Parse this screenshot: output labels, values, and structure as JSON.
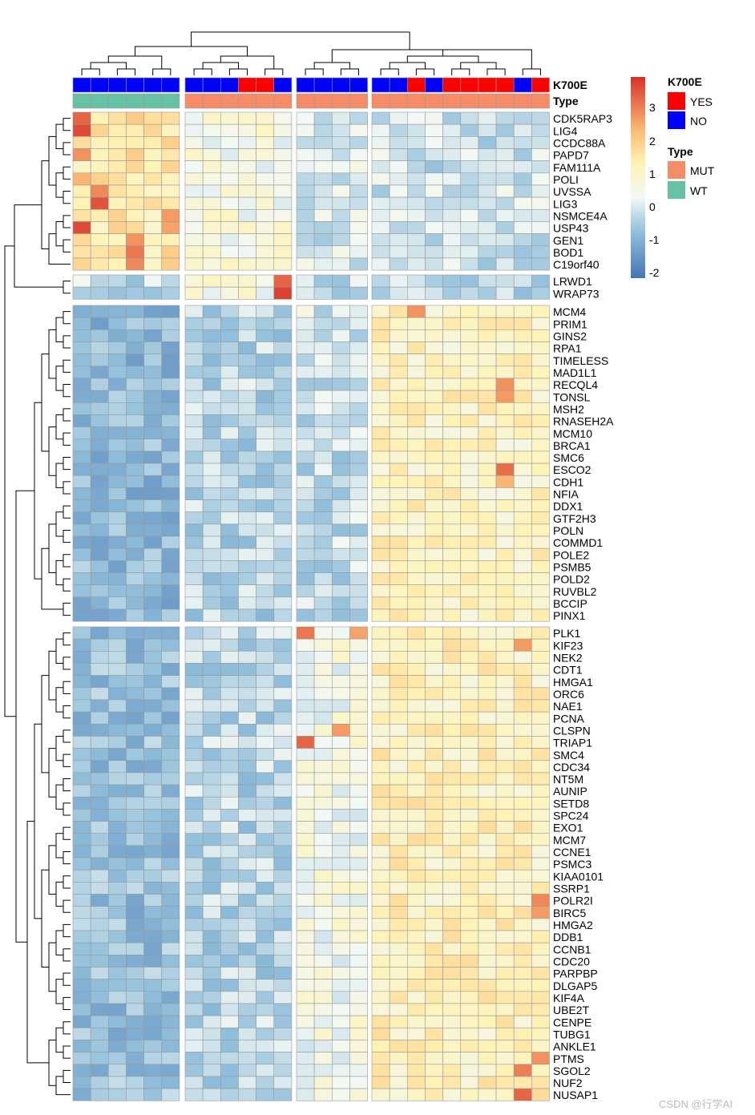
{
  "chart_data": {
    "type": "heatmap",
    "title": "",
    "annotations": [
      {
        "name": "K700E",
        "values": [
          "NO",
          "NO",
          "NO",
          "NO",
          "NO",
          "NO",
          "NO",
          "NO",
          "NO",
          "YES",
          "YES",
          "NO",
          "NO",
          "NO",
          "NO",
          "NO",
          "NO",
          "NO",
          "YES",
          "NO",
          "YES",
          "YES",
          "YES",
          "YES",
          "NO",
          "YES"
        ]
      },
      {
        "name": "Type",
        "values": [
          "WT",
          "WT",
          "WT",
          "WT",
          "WT",
          "WT",
          "MUT",
          "MUT",
          "MUT",
          "MUT",
          "MUT",
          "MUT",
          "MUT",
          "MUT",
          "MUT",
          "MUT",
          "MUT",
          "MUT",
          "MUT",
          "MUT",
          "MUT",
          "MUT",
          "MUT",
          "MUT",
          "MUT",
          "MUT"
        ]
      }
    ],
    "column_groups": [
      6,
      6,
      4,
      10
    ],
    "row_groups": [
      13,
      2,
      26,
      39
    ],
    "genes": [
      "CDK5RAP3",
      "LIG4",
      "CCDC88A",
      "PAPD7",
      "FAM111A",
      "POLI",
      "UVSSA",
      "LIG3",
      "NSMCE4A",
      "USP43",
      "GEN1",
      "BOD1",
      "C19orf40",
      "LRWD1",
      "WRAP73",
      "MCM4",
      "PRIM1",
      "GINS2",
      "RPA1",
      "TIMELESS",
      "MAD1L1",
      "RECQL4",
      "TONSL",
      "MSH2",
      "RNASEH2A",
      "MCM10",
      "BRCA1",
      "SMC6",
      "ESCO2",
      "CDH1",
      "NFIA",
      "DDX1",
      "GTF2H3",
      "POLN",
      "COMMD1",
      "POLE2",
      "PSMB5",
      "POLD2",
      "RUVBL2",
      "BCCIP",
      "PINX1",
      "PLK1",
      "KIF23",
      "NEK2",
      "CDT1",
      "HMGA1",
      "ORC6",
      "NAE1",
      "PCNA",
      "CLSPN",
      "TRIAP1",
      "SMC4",
      "CDC34",
      "NT5M",
      "AUNIP",
      "SETD8",
      "SPC24",
      "EXO1",
      "MCM7",
      "CCNE1",
      "PSMC3",
      "KIAA0101",
      "SSRP1",
      "POLR2I",
      "BIRC5",
      "HMGA2",
      "DDB1",
      "CCNB1",
      "CDC20",
      "PARPBP",
      "DLGAP5",
      "KIF4A",
      "UBE2T",
      "CENPE",
      "TUBG1",
      "ANKLE1",
      "PTMS",
      "SGOL2",
      "NUF2",
      "NUSAP1"
    ],
    "group_base": [
      [
        1.2,
        0.3,
        -0.3,
        -0.4
      ],
      [
        -0.5,
        0.3,
        -0.4,
        -0.5
      ],
      [
        -1.1,
        -0.6,
        -0.5,
        0.8
      ],
      [
        -1.0,
        -0.6,
        0.2,
        0.9
      ]
    ],
    "specials": [
      {
        "gene": "CDK5RAP3",
        "col": 0,
        "value": 3.0
      },
      {
        "gene": "LIG4",
        "col": 0,
        "value": 3.3
      },
      {
        "gene": "PAPD7",
        "col": 0,
        "value": 2.5
      },
      {
        "gene": "POLI",
        "col": 0,
        "value": 2.1
      },
      {
        "gene": "UVSSA",
        "col": 1,
        "value": 2.6
      },
      {
        "gene": "LIG3",
        "col": 1,
        "value": 3.2
      },
      {
        "gene": "USP43",
        "col": 0,
        "value": 3.3
      },
      {
        "gene": "GEN1",
        "col": 3,
        "value": 2.5
      },
      {
        "gene": "BOD1",
        "col": 3,
        "value": 2.8
      },
      {
        "gene": "C19orf40",
        "col": 3,
        "value": 2.6
      },
      {
        "gene": "NSMCE4A",
        "col": 5,
        "value": 2.4
      },
      {
        "gene": "USP43",
        "col": 5,
        "value": 2.3
      },
      {
        "gene": "LRWD1",
        "col": 11,
        "value": 3.0
      },
      {
        "gene": "WRAP73",
        "col": 11,
        "value": 3.4
      },
      {
        "gene": "MCM4",
        "col": 18,
        "value": 2.5
      },
      {
        "gene": "RECQL4",
        "col": 23,
        "value": 2.5
      },
      {
        "gene": "TONSL",
        "col": 23,
        "value": 2.4
      },
      {
        "gene": "ESCO2",
        "col": 23,
        "value": 2.9
      },
      {
        "gene": "CDH1",
        "col": 23,
        "value": 2.1
      },
      {
        "gene": "PLK1",
        "col": 12,
        "value": 2.8
      },
      {
        "gene": "PLK1",
        "col": 15,
        "value": 2.3
      },
      {
        "gene": "TRIAP1",
        "col": 12,
        "value": 3.0
      },
      {
        "gene": "CLSPN",
        "col": 14,
        "value": 2.4
      },
      {
        "gene": "KIF23",
        "col": 24,
        "value": 2.4
      },
      {
        "gene": "POLR2I",
        "col": 25,
        "value": 2.6
      },
      {
        "gene": "BIRC5",
        "col": 25,
        "value": 2.4
      },
      {
        "gene": "SGOL2",
        "col": 24,
        "value": 2.7
      },
      {
        "gene": "NUSAP1",
        "col": 24,
        "value": 3.0
      },
      {
        "gene": "PTMS",
        "col": 25,
        "value": 2.5
      },
      {
        "gene": "MCM4",
        "col": 12,
        "value": 0.3
      }
    ],
    "color_scale": {
      "type": "diverging",
      "range": [
        -2.4,
        3.6
      ],
      "stops": [
        {
          "value": -2.4,
          "color": "#4575B4"
        },
        {
          "value": -1.0,
          "color": "#91BFDB"
        },
        {
          "value": 0.0,
          "color": "#F2F8F4"
        },
        {
          "value": 1.0,
          "color": "#FEF3B6"
        },
        {
          "value": 2.0,
          "color": "#FDBE78"
        },
        {
          "value": 3.6,
          "color": "#D73027"
        }
      ]
    }
  },
  "legend": {
    "scale_ticks": [
      "3",
      "2",
      "1",
      "0",
      "-1",
      "-2"
    ],
    "k700e": {
      "title": "K700E",
      "items": [
        {
          "label": "YES",
          "color": "#FF0000"
        },
        {
          "label": "NO",
          "color": "#0000FF"
        }
      ]
    },
    "type": {
      "title": "Type",
      "items": [
        {
          "label": "MUT",
          "color": "#F68B67"
        },
        {
          "label": "WT",
          "color": "#66C2A5"
        }
      ]
    }
  },
  "watermark": "CSDN @行学AI"
}
